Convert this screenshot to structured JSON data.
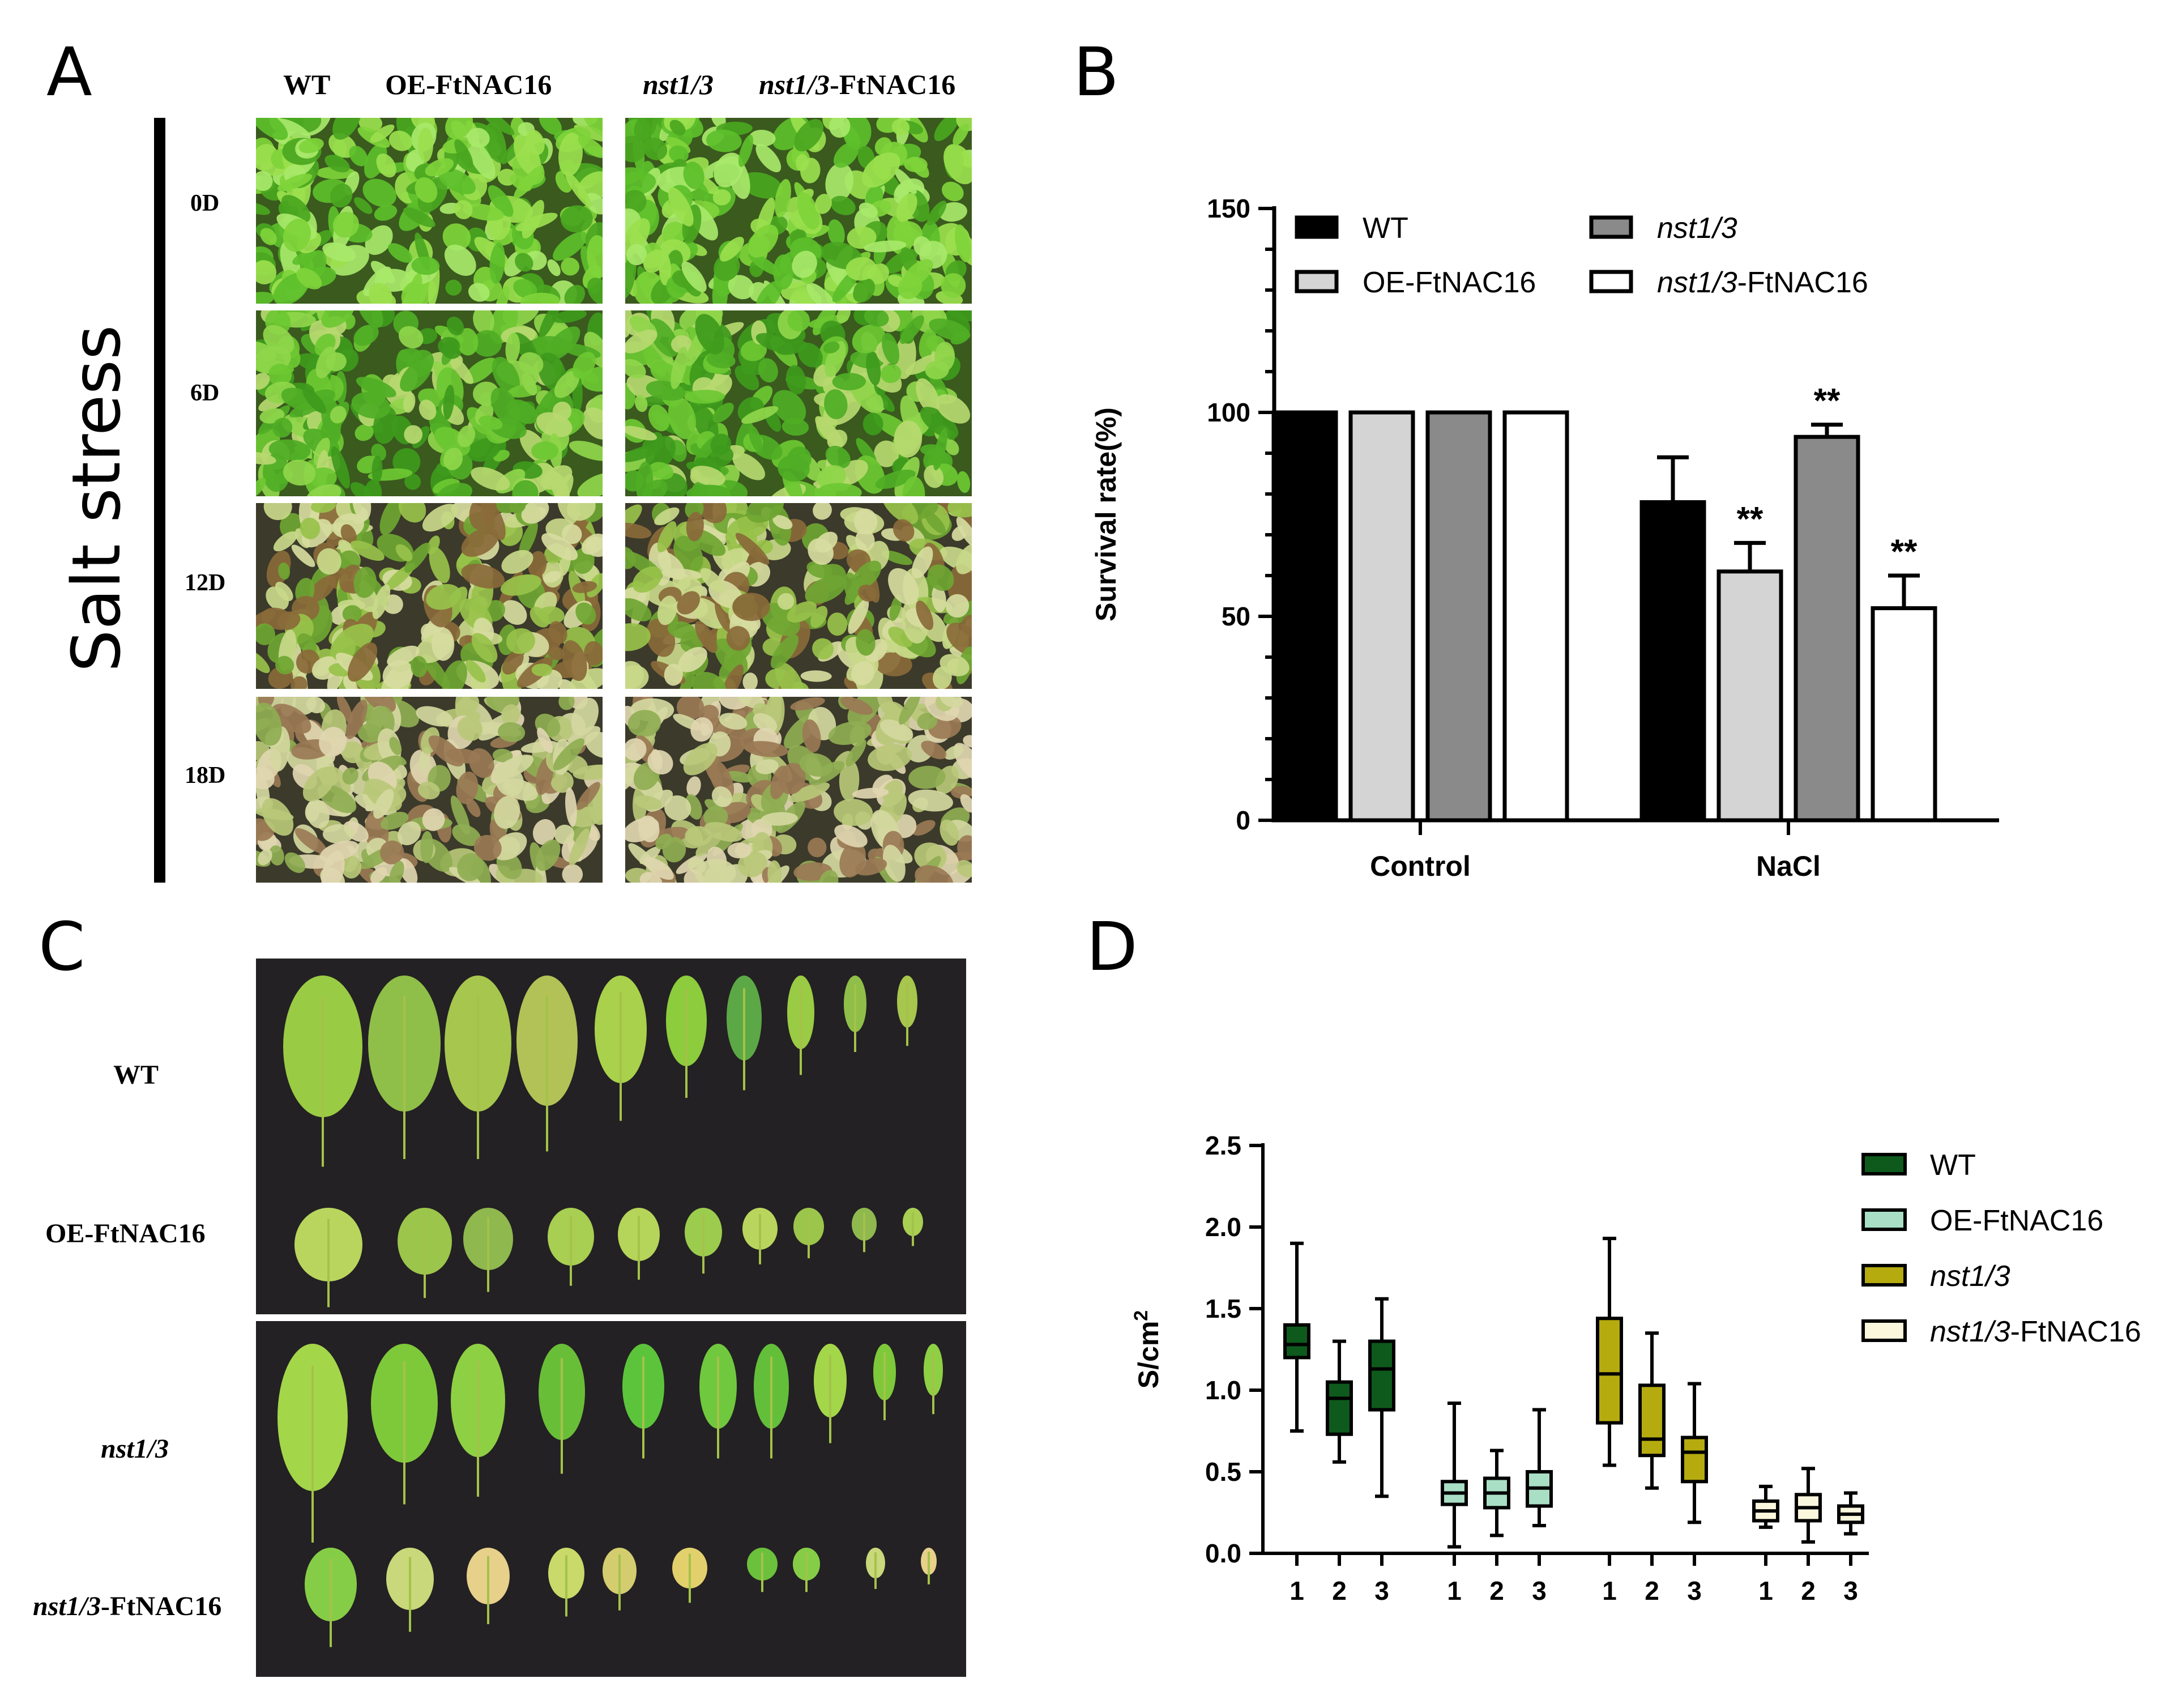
{
  "panels": {
    "A": {
      "letter": "A",
      "columns": [
        "WT",
        "OE-FtNAC16",
        "nst1/3",
        "nst1/3-FtNAC16"
      ],
      "rows": [
        "0D",
        "6D",
        "12D",
        "18D"
      ],
      "side_label": "Salt stress"
    },
    "B": {
      "letter": "B"
    },
    "C": {
      "letter": "C",
      "rows": [
        "WT",
        "OE-FtNAC16",
        "nst1/3",
        "nst1/3-FtNAC16"
      ]
    },
    "D": {
      "letter": "D"
    }
  },
  "chart_data": [
    {
      "type": "bar",
      "panel": "B",
      "ylabel": "Survival rate(%)",
      "ylim": [
        0,
        150
      ],
      "yticks": [
        0,
        50,
        100,
        150
      ],
      "categories": [
        "Control",
        "NaCl"
      ],
      "series": [
        {
          "name": "WT",
          "color": "#000000",
          "values": [
            100,
            78
          ],
          "errors": [
            0,
            11
          ],
          "significance": [
            "",
            ""
          ]
        },
        {
          "name": "OE-FtNAC16",
          "color": "#d4d4d4",
          "values": [
            100,
            61
          ],
          "errors": [
            0,
            7
          ],
          "significance": [
            "",
            "**"
          ]
        },
        {
          "name": "nst1/3",
          "color": "#8a8a8a",
          "values": [
            100,
            94
          ],
          "errors": [
            0,
            3
          ],
          "significance": [
            "",
            "**"
          ]
        },
        {
          "name": "nst1/3-FtNAC16",
          "color": "#ffffff",
          "values": [
            100,
            52
          ],
          "errors": [
            0,
            8
          ],
          "significance": [
            "",
            "**"
          ]
        }
      ],
      "legend": "top"
    },
    {
      "type": "box",
      "panel": "D",
      "ylabel": "S/cm2",
      "ylim": [
        0,
        2.5
      ],
      "yticks": [
        "0.0",
        "0.5",
        "1.0",
        "1.5",
        "2.0",
        "2.5"
      ],
      "xtick_labels": [
        "1",
        "2",
        "3"
      ],
      "series": [
        {
          "name": "WT",
          "color": "#0e5a1c",
          "boxes": [
            {
              "min": 0.75,
              "q1": 1.2,
              "median": 1.28,
              "q3": 1.4,
              "max": 1.9
            },
            {
              "min": 0.56,
              "q1": 0.73,
              "median": 0.95,
              "q3": 1.05,
              "max": 1.3
            },
            {
              "min": 0.35,
              "q1": 0.88,
              "median": 1.13,
              "q3": 1.3,
              "max": 1.56
            }
          ]
        },
        {
          "name": "OE-FtNAC16",
          "color": "#a9dfc4",
          "boxes": [
            {
              "min": 0.04,
              "q1": 0.3,
              "median": 0.37,
              "q3": 0.44,
              "max": 0.92
            },
            {
              "min": 0.11,
              "q1": 0.28,
              "median": 0.37,
              "q3": 0.46,
              "max": 0.63
            },
            {
              "min": 0.17,
              "q1": 0.29,
              "median": 0.4,
              "q3": 0.5,
              "max": 0.88
            }
          ]
        },
        {
          "name": "nst1/3",
          "color": "#b5ab0f",
          "boxes": [
            {
              "min": 0.54,
              "q1": 0.8,
              "median": 1.1,
              "q3": 1.44,
              "max": 1.93
            },
            {
              "min": 0.4,
              "q1": 0.6,
              "median": 0.7,
              "q3": 1.03,
              "max": 1.35
            },
            {
              "min": 0.19,
              "q1": 0.44,
              "median": 0.62,
              "q3": 0.71,
              "max": 1.04
            }
          ]
        },
        {
          "name": "nst1/3-FtNAC16",
          "color": "#fbf7dd",
          "boxes": [
            {
              "min": 0.16,
              "q1": 0.2,
              "median": 0.26,
              "q3": 0.32,
              "max": 0.41
            },
            {
              "min": 0.07,
              "q1": 0.2,
              "median": 0.28,
              "q3": 0.36,
              "max": 0.52
            },
            {
              "min": 0.12,
              "q1": 0.19,
              "median": 0.24,
              "q3": 0.29,
              "max": 0.37
            }
          ]
        }
      ],
      "legend": "right"
    }
  ]
}
